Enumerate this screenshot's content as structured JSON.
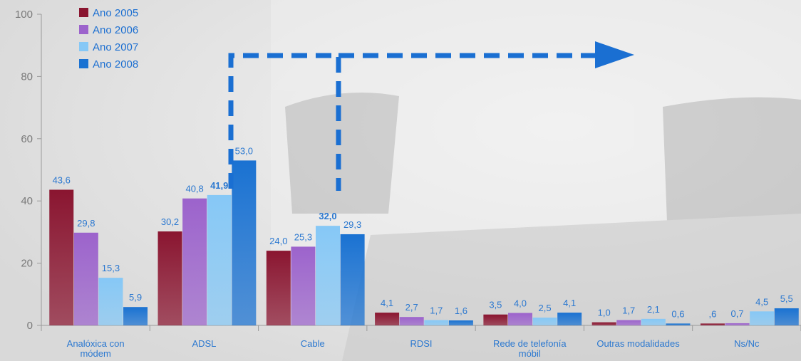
{
  "chart_data": {
    "type": "bar",
    "title": "",
    "xlabel": "",
    "ylabel": "",
    "ylim": [
      0,
      100
    ],
    "yticks": [
      0,
      20,
      40,
      60,
      80,
      100
    ],
    "grid": false,
    "legend_position": "top-left",
    "categories": [
      [
        "Analóxica con",
        "módem"
      ],
      [
        "ADSL"
      ],
      [
        "Cable"
      ],
      [
        "RDSI"
      ],
      [
        "Rede de telefonía",
        "móbil"
      ],
      [
        "Outras modalidades"
      ],
      [
        "Ns/Nc"
      ]
    ],
    "series": [
      {
        "name": "Ano 2005",
        "color": "#8a1530",
        "values": [
          43.6,
          30.2,
          24.0,
          4.1,
          3.5,
          1.0,
          0.6
        ],
        "labels": [
          "43,6",
          "30,2",
          "24,0",
          "4,1",
          "3,5",
          "1,0",
          ",6"
        ]
      },
      {
        "name": "Ano 2006",
        "color": "#9c63cc",
        "values": [
          29.8,
          40.8,
          25.3,
          2.7,
          4.0,
          1.7,
          0.7
        ],
        "labels": [
          "29,8",
          "40,8",
          "25,3",
          "2,7",
          "4,0",
          "1,7",
          "0,7"
        ]
      },
      {
        "name": "Ano 2007",
        "color": "#86c8f6",
        "values": [
          15.3,
          41.9,
          32.0,
          1.7,
          2.5,
          2.1,
          4.5
        ],
        "labels": [
          "15,3",
          "41,9",
          "32,0",
          "1,7",
          "2,5",
          "2,1",
          "4,5"
        ],
        "bold_labels": [
          1,
          2
        ]
      },
      {
        "name": "Ano 2008",
        "color": "#1a72d2",
        "values": [
          5.9,
          53.0,
          29.3,
          1.6,
          4.1,
          0.6,
          5.5
        ],
        "labels": [
          "5,9",
          "53,0",
          "29,3",
          "1,6",
          "4,1",
          "0,6",
          "5,5"
        ]
      }
    ]
  }
}
